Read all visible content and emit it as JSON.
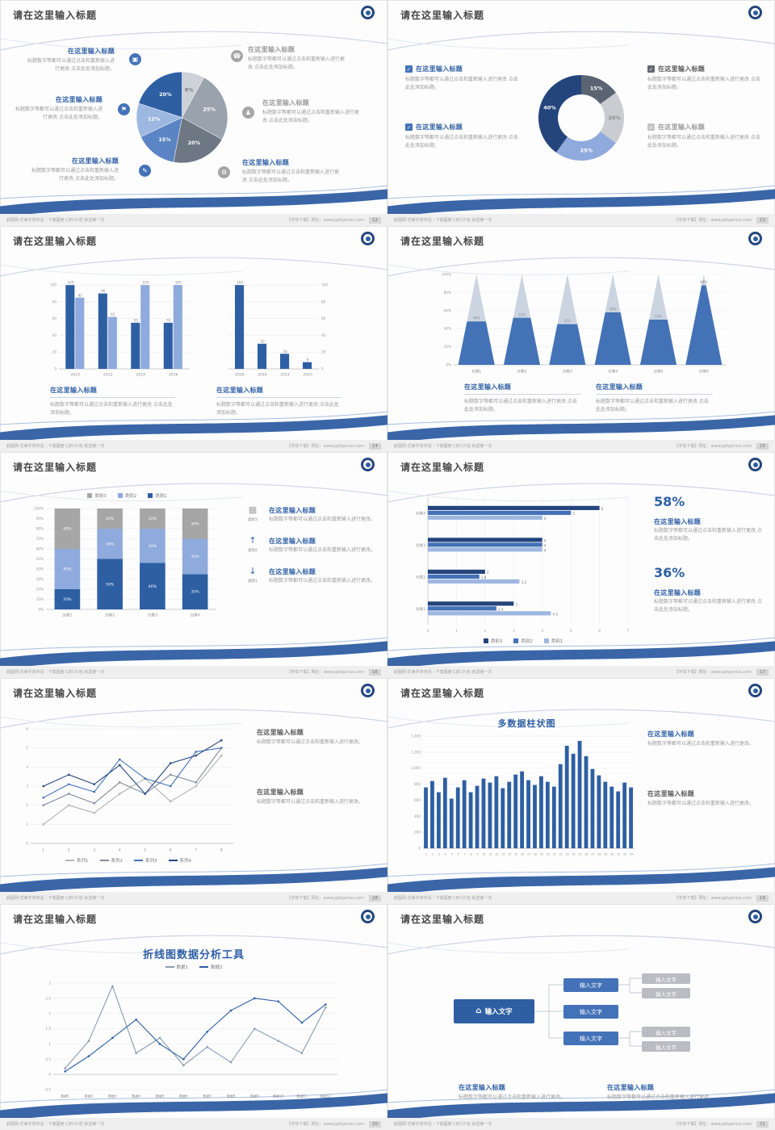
{
  "theme": {
    "accent": "#2e5fa3",
    "navy": "#24457c",
    "mid_blue": "#4472b8",
    "light_blue": "#8faadc",
    "pale_blue": "#9db8e0",
    "gray": "#a6a6a6",
    "title_text": "#454545",
    "body_text": "#9a9a9a"
  },
  "icons": {
    "monitor": "▣",
    "phone": "☎",
    "car": "⚑",
    "people": "♟",
    "book": "✎",
    "bike": "♻",
    "home": "⌂",
    "check": "✓",
    "bar_chart": "▦",
    "arrow_up": "↑",
    "arrow_down": "↓"
  },
  "common": {
    "slide_title": "请在这里输入标题",
    "ph_title": "在这里输入标题",
    "body_short": "标题数字等都可以通过点击和重新输入进行更改。",
    "body_long": "标题数字等都可以通过点击和重新输入进行更改 点击此处添加标题。",
    "input_text": "输入文字",
    "footer_left": "航图网·优美字体传话｜下载图册·CJEC片包·就送第一次",
    "footer_right": "【字体下载】网址：www.pptgenius.com"
  },
  "slides": [
    {
      "page": "12",
      "chart_data": {
        "type": "pie",
        "slices": [
          {
            "label": "8%",
            "value": 8,
            "color": "#cdd2d8",
            "label_color": "#808080"
          },
          {
            "label": "25%",
            "value": 25,
            "color": "#9aa3ad",
            "label_color": "#ffffff"
          },
          {
            "label": "20%",
            "value": 20,
            "color": "#6e7884",
            "label_color": "#ffffff"
          },
          {
            "label": "15%",
            "value": 15,
            "color": "#5b84c4",
            "label_color": "#ffffff"
          },
          {
            "label": "12%",
            "value": 12,
            "color": "#9db8e0",
            "label_color": "#ffffff"
          },
          {
            "label": "20%",
            "value": 20,
            "color": "#2e5fa3",
            "label_color": "#ffffff"
          }
        ]
      }
    },
    {
      "page": "13",
      "checks": [
        "#4472b8",
        "#4472b8",
        "#636a72",
        "#c6c6c6"
      ],
      "chart_data": {
        "type": "donut",
        "thickness": 24,
        "slices": [
          {
            "label": "15%",
            "value": 15,
            "color": "#5a6472",
            "label_color": "#ffffff"
          },
          {
            "label": "20%",
            "value": 20,
            "color": "#c9cdd2",
            "label_color": "#8a8a8a"
          },
          {
            "label": "25%",
            "value": 25,
            "color": "#8faadc",
            "label_color": "#ffffff"
          },
          {
            "label": "40%",
            "value": 40,
            "color": "#24457c",
            "label_color": "#ffffff"
          }
        ]
      }
    },
    {
      "page": "14",
      "chart_data": [
        {
          "type": "bars",
          "ymax": 105,
          "yticks": [
            "0",
            "20",
            "40",
            "60",
            "80",
            "100"
          ],
          "value_labels": true,
          "categories": [
            "2010",
            "2012",
            "2014",
            "2016"
          ],
          "series": [
            {
              "name": "",
              "color": "#2e5fa3",
              "values": [
                100,
                90,
                55,
                55
              ]
            },
            {
              "name": "",
              "color": "#8faadc",
              "values": [
                85,
                62,
                100,
                100
              ]
            }
          ]
        },
        {
          "type": "bars",
          "ymax": 105,
          "yticks": [
            "0",
            "20",
            "40",
            "60",
            "80",
            "100"
          ],
          "ticks_right": true,
          "value_labels": true,
          "categories": [
            "2016",
            "2014",
            "2012",
            "2010"
          ],
          "series": [
            {
              "name": "",
              "color": "#2e5fa3",
              "values": [
                100,
                30,
                18,
                8
              ]
            }
          ]
        }
      ]
    },
    {
      "page": "15",
      "chart_data": {
        "type": "cones",
        "yticks": [
          "0%",
          "20%",
          "40%",
          "60%",
          "80%",
          "100%"
        ],
        "categories": [
          "分类1",
          "分类2",
          "分类3",
          "分类4",
          "分类5",
          "分类6"
        ],
        "values": [
          48,
          52,
          45,
          58,
          50,
          88
        ],
        "color": "#4472b8",
        "back_color": "#dfe3e8"
      }
    },
    {
      "page": "16",
      "rows": [
        {
          "label": "类别3"
        },
        {
          "label": "类别2"
        },
        {
          "label": "类别1"
        }
      ],
      "chart_data": {
        "type": "stack",
        "pad_l": 22,
        "yticks": [
          "0%",
          "10%",
          "20%",
          "30%",
          "40%",
          "50%",
          "60%",
          "70%",
          "80%",
          "90%",
          "100%"
        ],
        "categories": [
          "分类1",
          "分类2",
          "分类3",
          "分类4"
        ],
        "series": [
          {
            "name": "类别1",
            "color": "#2e5fa3",
            "values": [
              20,
              50,
              46,
              35
            ]
          },
          {
            "name": "类别2",
            "color": "#8faadc",
            "values": [
              40,
              30,
              34,
              35
            ]
          },
          {
            "name": "类别3",
            "color": "#a6a6a6",
            "values": [
              40,
              20,
              20,
              30
            ]
          }
        ]
      }
    },
    {
      "page": "17",
      "stats": [
        {
          "value": "58%"
        },
        {
          "value": "36%"
        }
      ],
      "chart_data": {
        "type": "hbars",
        "xmax": 7,
        "xticks": [
          0,
          1,
          2,
          3,
          4,
          5,
          6,
          7
        ],
        "categories": [
          "分类4",
          "分类3",
          "分类2",
          "分类1"
        ],
        "series": [
          {
            "name": "类别3",
            "color": "#24457c",
            "values": [
              6,
              4,
              2,
              3
            ]
          },
          {
            "name": "类别2",
            "color": "#4472b8",
            "values": [
              5,
              4,
              1.8,
              2.4
            ]
          },
          {
            "name": "类别1",
            "color": "#9db8e0",
            "values": [
              4,
              4,
              3.2,
              4.3
            ]
          }
        ]
      }
    },
    {
      "page": "18",
      "chart_data": {
        "type": "line",
        "ymin": 0,
        "ymax": 6,
        "yticks": [
          "0",
          "1",
          "2",
          "3",
          "4",
          "5",
          "6"
        ],
        "x": [
          "1",
          "2",
          "3",
          "4",
          "5",
          "6",
          "7",
          "8"
        ],
        "series": [
          {
            "name": "系列1",
            "color": "#b3b3b3",
            "values": [
              1,
              2,
              1.6,
              2.6,
              3.4,
              2.2,
              3,
              4.6
            ]
          },
          {
            "name": "系列2",
            "color": "#7f8c9b",
            "values": [
              2,
              2.6,
              2.1,
              3.2,
              2.6,
              3.6,
              3.2,
              5
            ]
          },
          {
            "name": "系列3",
            "color": "#4472b8",
            "values": [
              2.4,
              3.1,
              2.7,
              4.4,
              3.4,
              3,
              4.8,
              5
            ]
          },
          {
            "name": "系列4",
            "color": "#24457c",
            "values": [
              3,
              3.6,
              3.1,
              4.1,
              2.6,
              4.2,
              4.6,
              5.4
            ]
          }
        ]
      }
    },
    {
      "page": "19",
      "chart_title": "多数据柱状图",
      "chart_data": {
        "type": "bars",
        "ymax": 1400,
        "cat_font": 3.2,
        "yticks": [
          "0",
          "200",
          "400",
          "600",
          "800",
          "1,000",
          "1,200",
          "1,400"
        ],
        "categories": [
          "1",
          "2",
          "3",
          "4",
          "5",
          "6",
          "7",
          "8",
          "9",
          "10",
          "11",
          "12",
          "13",
          "14",
          "15",
          "16",
          "17",
          "18",
          "19",
          "20",
          "21",
          "22",
          "23",
          "24",
          "25",
          "26",
          "27",
          "28",
          "29",
          "30",
          "31",
          "32",
          "33"
        ],
        "series": [
          {
            "name": "",
            "color": "#2e5fa3",
            "values": [
              760,
              840,
              700,
              880,
              620,
              760,
              850,
              700,
              780,
              870,
              820,
              900,
              750,
              830,
              920,
              960,
              850,
              790,
              900,
              830,
              770,
              1050,
              1280,
              1180,
              1340,
              1150,
              990,
              910,
              830,
              770,
              710,
              820,
              760
            ]
          }
        ]
      }
    },
    {
      "page": "20",
      "chart_title": "折线图数据分析工具",
      "chart_data": {
        "type": "line",
        "ymin": -0.5,
        "ymax": 3,
        "cat_font": 4.0,
        "yticks": [
          "-0.5",
          "0",
          "0.5",
          "1",
          "1.5",
          "2",
          "2.5",
          "3"
        ],
        "x": [
          "数据1",
          "数据2",
          "数据3",
          "数据4",
          "数据5",
          "数据6",
          "数据7",
          "数据8",
          "数据9",
          "数据10",
          "数据11",
          "数据12"
        ],
        "series": [
          {
            "name": "数据1",
            "color": "#8a9bb0",
            "values": [
              0.2,
              1.1,
              2.9,
              0.7,
              1.2,
              0.3,
              0.9,
              0.4,
              1.5,
              1.1,
              0.7,
              2.2
            ]
          },
          {
            "name": "数据2",
            "color": "#2e5fa3",
            "values": [
              0.1,
              0.6,
              1.2,
              1.8,
              1.0,
              0.5,
              1.4,
              2.1,
              2.5,
              2.4,
              1.7,
              2.3
            ]
          }
        ]
      }
    },
    {
      "page": "21",
      "diagram": {
        "root": "输入文字",
        "children": [
          "输入文字",
          "输入文字",
          "输入文字"
        ],
        "leaves": [
          "输入文字",
          "输入文字",
          "输入文字",
          "输入文字"
        ]
      }
    }
  ]
}
